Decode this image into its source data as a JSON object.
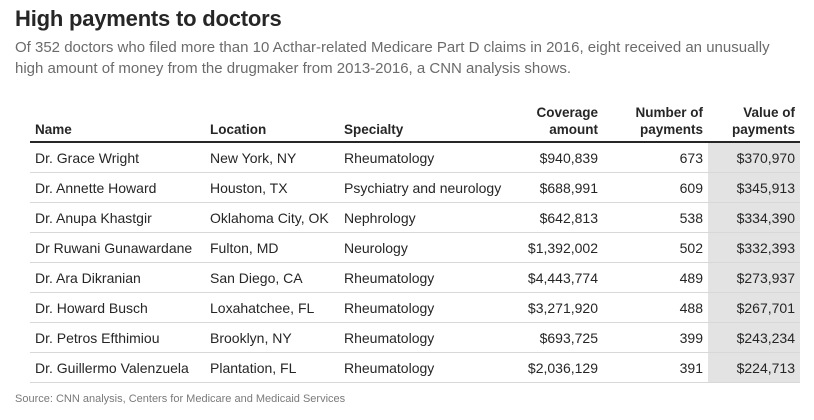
{
  "header": {
    "title": "High payments to doctors",
    "subtitle": "Of 352 doctors who filed more than 10 Acthar-related Medicare Part D claims in 2016, eight received an unusually high amount of money from the drugmaker from 2013-2016, a CNN analysis shows."
  },
  "table": {
    "columns": [
      {
        "label": "Name",
        "align": "left"
      },
      {
        "label": "Location",
        "align": "left"
      },
      {
        "label": "Specialty",
        "align": "left"
      },
      {
        "label": "Coverage amount",
        "align": "right"
      },
      {
        "label": "Number of payments",
        "align": "right"
      },
      {
        "label": "Value of payments",
        "align": "right"
      }
    ],
    "rows": [
      [
        "Dr. Grace Wright",
        "New York, NY",
        "Rheumatology",
        "$940,839",
        "673",
        "$370,970"
      ],
      [
        "Dr. Annette Howard",
        "Houston, TX",
        "Psychiatry and neurology",
        "$688,991",
        "609",
        "$345,913"
      ],
      [
        "Dr. Anupa Khastgir",
        "Oklahoma City, OK",
        "Nephrology",
        "$642,813",
        "538",
        "$334,390"
      ],
      [
        "Dr Ruwani Gunawardane",
        "Fulton, MD",
        "Neurology",
        "$1,392,002",
        "502",
        "$332,393"
      ],
      [
        "Dr. Ara Dikranian",
        "San Diego, CA",
        "Rheumatology",
        "$4,443,774",
        "489",
        "$273,937"
      ],
      [
        "Dr. Howard Busch",
        "Loxahatchee, FL",
        "Rheumatology",
        "$3,271,920",
        "488",
        "$267,701"
      ],
      [
        "Dr. Petros Efthimiou",
        "Brooklyn, NY",
        "Rheumatology",
        "$693,725",
        "399",
        "$243,234"
      ],
      [
        "Dr. Guillermo Valenzuela",
        "Plantation, FL",
        "Rheumatology",
        "$2,036,129",
        "391",
        "$224,713"
      ]
    ],
    "highlight_color": "#e3e3e3"
  },
  "footer": {
    "source": "Source: CNN analysis, Centers for Medicare and Medicaid Services"
  }
}
